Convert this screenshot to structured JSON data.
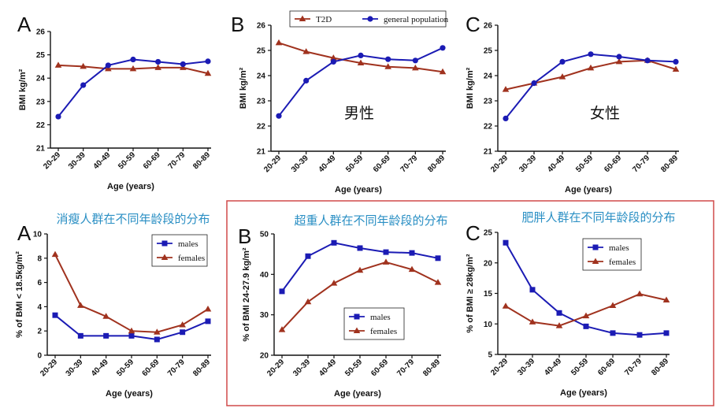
{
  "colors": {
    "red": "#a0321e",
    "blue": "#1b1bb4",
    "frame": "#d04a4a",
    "title_cn": "#2a8fc4"
  },
  "chart_data": [
    {
      "id": "top-a",
      "type": "line",
      "panel_letter": "A",
      "categories": [
        "20-29",
        "30-39",
        "40-49",
        "50-59",
        "60-69",
        "70-79",
        "80-89"
      ],
      "ylim": [
        21,
        26
      ],
      "yticks": [
        21,
        22,
        23,
        24,
        25,
        26
      ],
      "xlabel": "Age (years)",
      "ylabel": "BMI kg/m²",
      "series": [
        {
          "name": "T2D",
          "color": "red",
          "marker": "tri",
          "values": [
            24.55,
            24.5,
            24.4,
            24.4,
            24.45,
            24.45,
            24.2
          ]
        },
        {
          "name": "general population",
          "color": "blue",
          "marker": "dot",
          "values": [
            22.35,
            23.7,
            24.55,
            24.8,
            24.7,
            24.6,
            24.72
          ]
        }
      ]
    },
    {
      "id": "top-b",
      "type": "line",
      "panel_letter": "B",
      "center_label": "男性",
      "categories": [
        "20-29",
        "30-39",
        "40-49",
        "50-59",
        "60-69",
        "70-79",
        "80-89"
      ],
      "ylim": [
        21,
        26
      ],
      "yticks": [
        21,
        22,
        23,
        24,
        25,
        26
      ],
      "xlabel": "Age (years)",
      "ylabel": "BMI kg/m²",
      "legend": [
        "T2D",
        "general population"
      ],
      "series": [
        {
          "name": "T2D",
          "color": "red",
          "marker": "tri",
          "values": [
            25.3,
            24.95,
            24.7,
            24.5,
            24.35,
            24.3,
            24.15
          ]
        },
        {
          "name": "general population",
          "color": "blue",
          "marker": "dot",
          "values": [
            22.4,
            23.8,
            24.55,
            24.8,
            24.65,
            24.6,
            25.1
          ]
        }
      ]
    },
    {
      "id": "top-c",
      "type": "line",
      "panel_letter": "C",
      "center_label": "女性",
      "categories": [
        "20-29",
        "30-39",
        "40-49",
        "50-59",
        "60-69",
        "70-79",
        "80-89"
      ],
      "ylim": [
        21,
        26
      ],
      "yticks": [
        21,
        22,
        23,
        24,
        25,
        26
      ],
      "xlabel": "Age (years)",
      "ylabel": "BMI kg/m²",
      "series": [
        {
          "name": "T2D",
          "color": "red",
          "marker": "tri",
          "values": [
            23.45,
            23.7,
            23.95,
            24.3,
            24.55,
            24.6,
            24.25
          ]
        },
        {
          "name": "general population",
          "color": "blue",
          "marker": "dot",
          "values": [
            22.3,
            23.7,
            24.55,
            24.85,
            24.75,
            24.6,
            24.55
          ]
        }
      ]
    },
    {
      "id": "bot-a",
      "type": "line",
      "panel_letter": "A",
      "title": "消瘦人群在不同年龄段的分布",
      "categories": [
        "20-29",
        "30-39",
        "40-49",
        "50-59",
        "60-69",
        "70-79",
        "80-89"
      ],
      "ylim": [
        0,
        10
      ],
      "yticks": [
        0,
        2,
        4,
        6,
        8,
        10
      ],
      "xlabel": "Age (years)",
      "ylabel": "% of BMI < 18.5kg/m²",
      "legend": [
        "males",
        "females"
      ],
      "series": [
        {
          "name": "males",
          "color": "blue",
          "marker": "sq",
          "values": [
            3.3,
            1.6,
            1.6,
            1.6,
            1.3,
            1.9,
            2.8
          ]
        },
        {
          "name": "females",
          "color": "red",
          "marker": "tri",
          "values": [
            8.3,
            4.1,
            3.2,
            2.0,
            1.9,
            2.5,
            3.8
          ]
        }
      ]
    },
    {
      "id": "bot-b",
      "type": "line",
      "panel_letter": "B",
      "title": "超重人群在不同年龄段的分布",
      "categories": [
        "20-29",
        "30-39",
        "40-49",
        "50-59",
        "60-69",
        "70-79",
        "80-89"
      ],
      "ylim": [
        20,
        50
      ],
      "yticks": [
        20,
        30,
        40,
        50
      ],
      "xlabel": "Age (years)",
      "ylabel": "% of BMI 24-27.9 kg/m²",
      "legend": [
        "males",
        "females"
      ],
      "series": [
        {
          "name": "males",
          "color": "blue",
          "marker": "sq",
          "values": [
            35.8,
            44.5,
            47.8,
            46.5,
            45.5,
            45.3,
            44.0
          ]
        },
        {
          "name": "females",
          "color": "red",
          "marker": "tri",
          "values": [
            26.3,
            33.2,
            37.8,
            41.0,
            43.0,
            41.2,
            38.0
          ]
        }
      ]
    },
    {
      "id": "bot-c",
      "type": "line",
      "panel_letter": "C",
      "title": "肥胖人群在不同年龄段的分布",
      "categories": [
        "20-29",
        "30-39",
        "40-49",
        "50-59",
        "60-69",
        "70-79",
        "80-89"
      ],
      "ylim": [
        5,
        25
      ],
      "yticks": [
        5,
        10,
        15,
        20,
        25
      ],
      "xlabel": "Age (years)",
      "ylabel": "% of BMI ≥ 28kg/m²",
      "legend": [
        "males",
        "females"
      ],
      "series": [
        {
          "name": "males",
          "color": "blue",
          "marker": "sq",
          "values": [
            23.3,
            15.6,
            11.8,
            9.6,
            8.5,
            8.2,
            8.5
          ]
        },
        {
          "name": "females",
          "color": "red",
          "marker": "tri",
          "values": [
            12.9,
            10.3,
            9.7,
            11.3,
            13.0,
            14.9,
            13.9
          ]
        }
      ]
    }
  ]
}
